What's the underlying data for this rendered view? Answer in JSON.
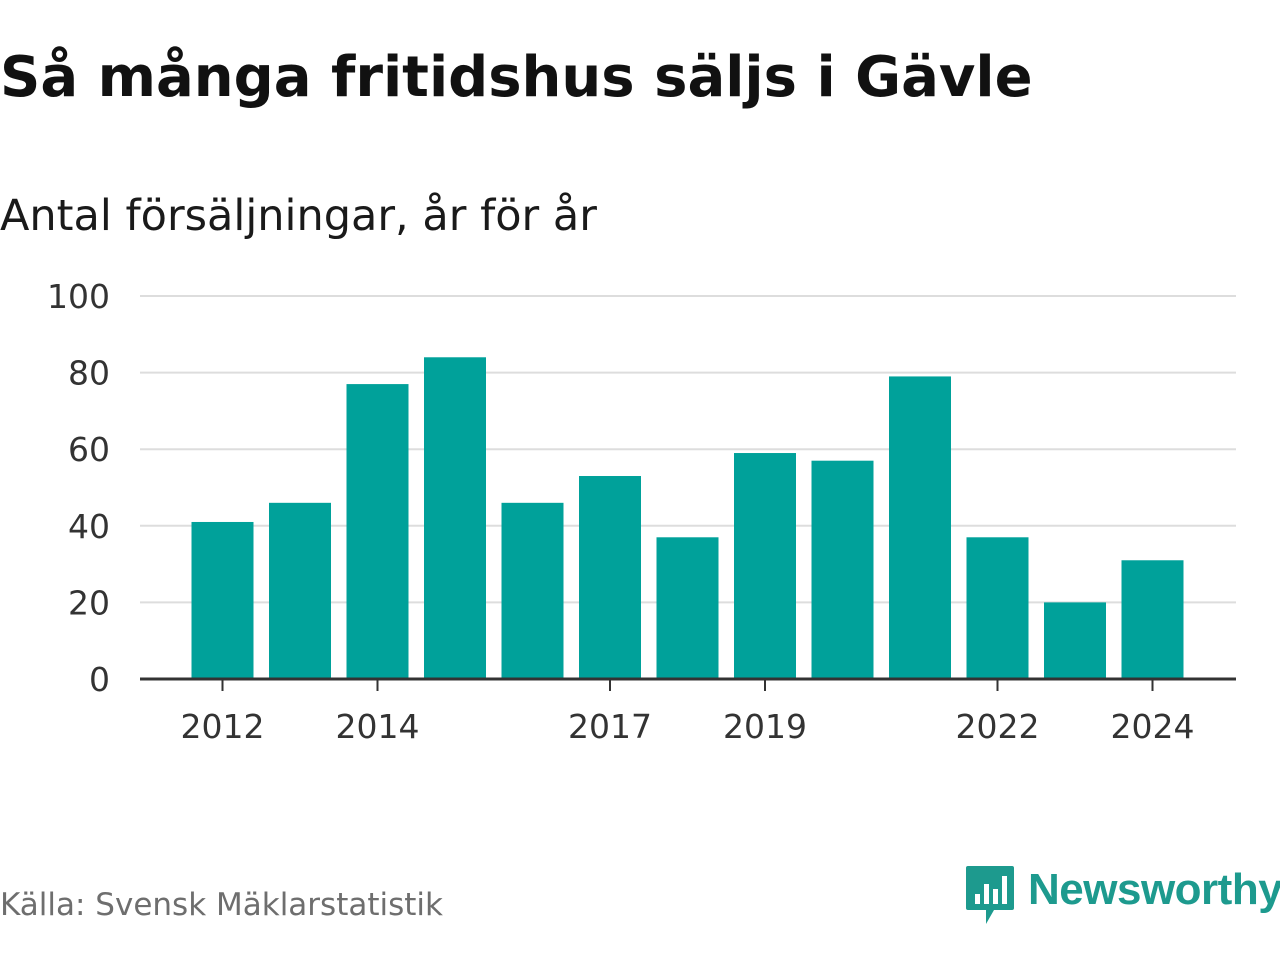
{
  "header": {
    "title": "Så många fritidshus säljs i Gävle",
    "subtitle": "Antal försäljningar, år för år"
  },
  "footer": {
    "source": "Källa: Svensk Mäklarstatistik",
    "brand": "Newsworthy"
  },
  "colors": {
    "bar": "#00a19a",
    "gridline": "#dddddd",
    "axis": "#333333",
    "brand": "#1d9a8e"
  },
  "icons": {
    "brand_logo": "newsworthy-logo-icon"
  },
  "chart_data": {
    "type": "bar",
    "title": "Så många fritidshus säljs i Gävle",
    "subtitle": "Antal försäljningar, år för år",
    "categories": [
      2012,
      2013,
      2014,
      2015,
      2016,
      2017,
      2018,
      2019,
      2020,
      2021,
      2022,
      2023,
      2024
    ],
    "values": [
      41,
      46,
      77,
      84,
      46,
      53,
      37,
      59,
      57,
      79,
      37,
      20,
      31
    ],
    "xticks": [
      "2012",
      "2014",
      "2017",
      "2019",
      "2022",
      "2024"
    ],
    "yticks": [
      "0",
      "20",
      "40",
      "60",
      "80",
      "100"
    ],
    "ylim": [
      0,
      100
    ],
    "grid": true,
    "legend": "none"
  }
}
